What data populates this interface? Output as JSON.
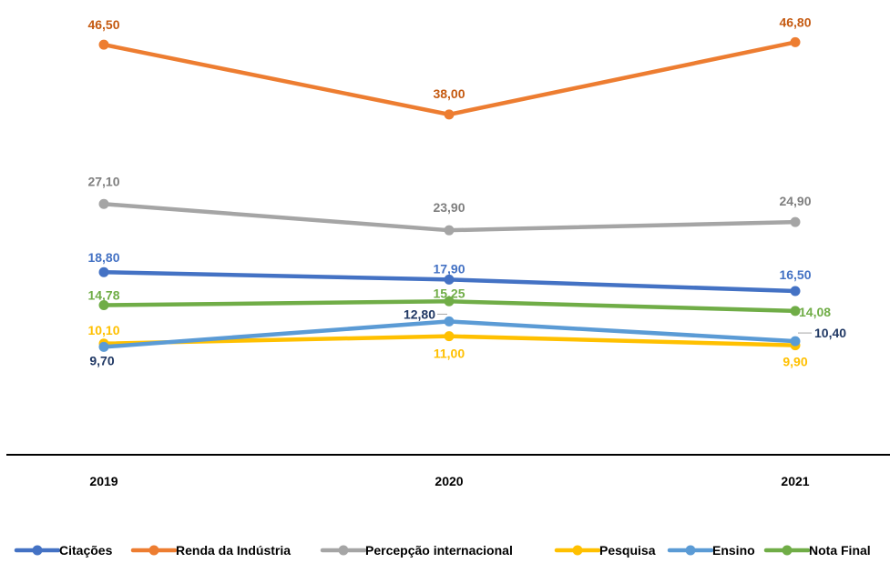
{
  "chart_data": {
    "type": "line",
    "categories": [
      "2019",
      "2020",
      "2021"
    ],
    "ylim": [
      0,
      50
    ],
    "grid": false,
    "legend_position": "bottom",
    "series": [
      {
        "name": "Citações",
        "color": "#4472C4",
        "label_color": "#4472C4",
        "values": [
          18.8,
          17.9,
          16.5
        ],
        "labels": [
          "18,80",
          "17,90",
          "16,50"
        ]
      },
      {
        "name": "Renda da Indústria",
        "color": "#ED7D31",
        "label_color": "#C55A11",
        "values": [
          46.5,
          38.0,
          46.8
        ],
        "labels": [
          "46,50",
          "38,00",
          "46,80"
        ]
      },
      {
        "name": "Percepção internacional",
        "color": "#A5A5A5",
        "label_color": "#7F7F7F",
        "values": [
          27.1,
          23.9,
          24.9
        ],
        "labels": [
          "27,10",
          "23,90",
          "24,90"
        ]
      },
      {
        "name": "Pesquisa",
        "color": "#FFC000",
        "label_color": "#FFC000",
        "values": [
          10.1,
          11.0,
          9.9
        ],
        "labels": [
          "10,10",
          "11,00",
          "9,90"
        ]
      },
      {
        "name": "Ensino",
        "color": "#5B9BD5",
        "label_color": "#203864",
        "values": [
          9.7,
          12.8,
          10.4
        ],
        "labels": [
          "9,70",
          "12,80",
          "10,40"
        ]
      },
      {
        "name": "Nota Final",
        "color": "#70AD47",
        "label_color": "#70AD47",
        "values": [
          14.78,
          15.25,
          14.08
        ],
        "labels": [
          "14,78",
          "15,25",
          "14,08"
        ]
      }
    ]
  }
}
